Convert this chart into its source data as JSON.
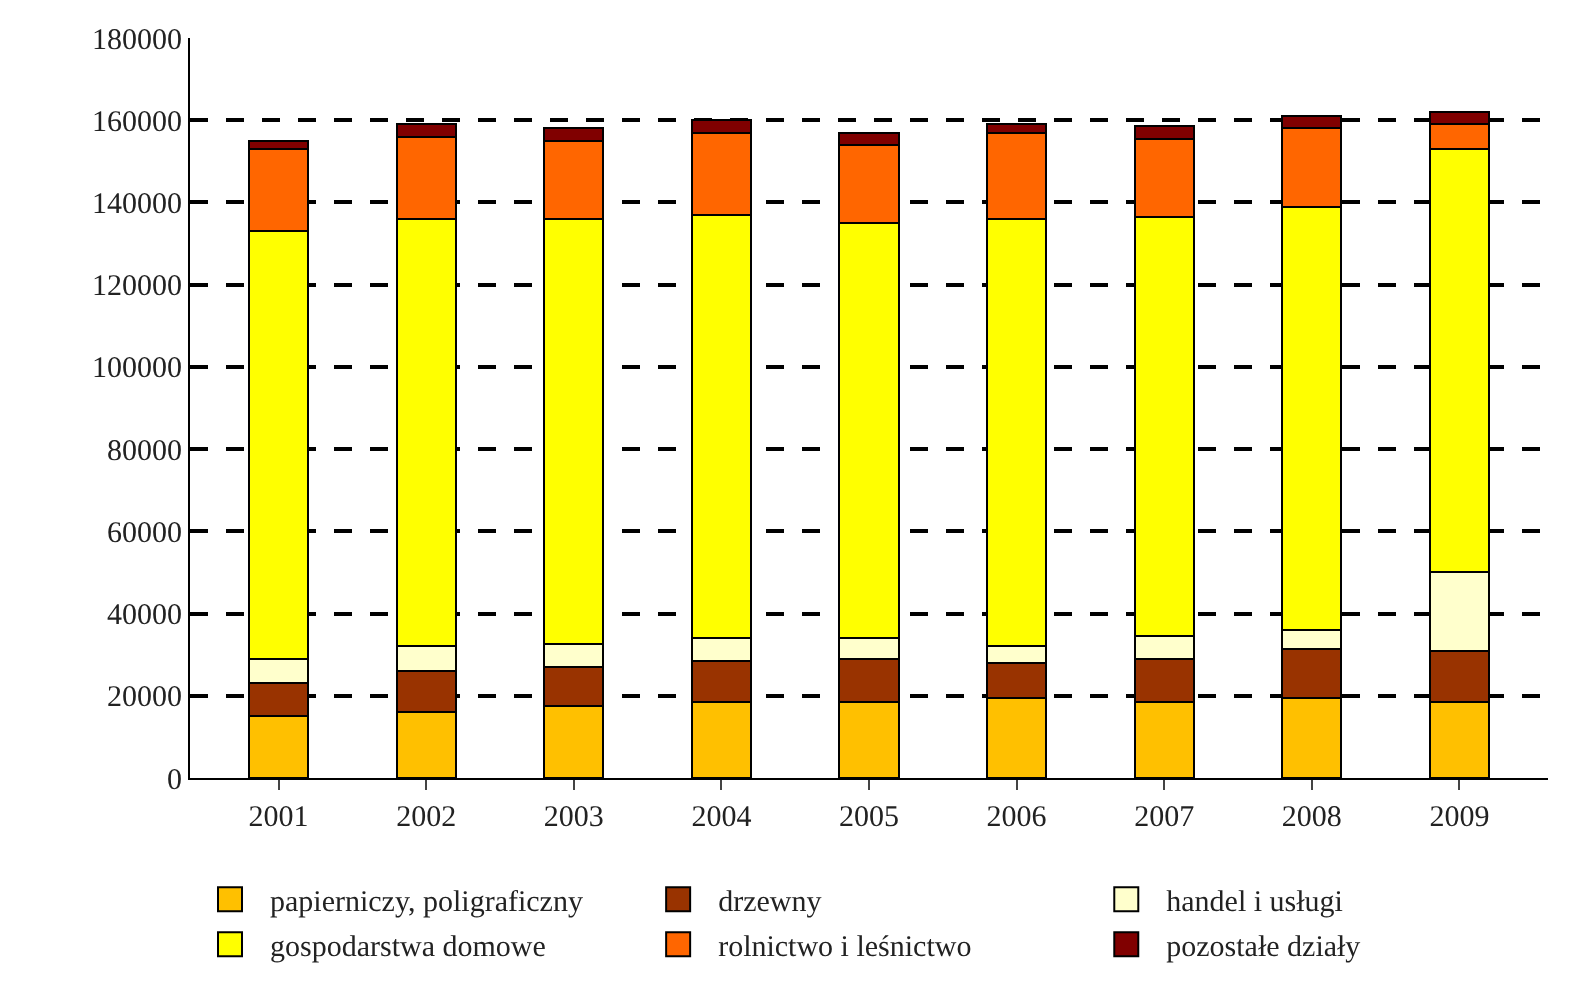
{
  "chart_data": {
    "type": "bar",
    "stacked": true,
    "categories": [
      "2001",
      "2002",
      "2003",
      "2004",
      "2005",
      "2006",
      "2007",
      "2008",
      "2009"
    ],
    "series": [
      {
        "name": "papierniczy, poligraficzny",
        "color": "#ffc000",
        "values": [
          15000,
          16000,
          17500,
          18500,
          18500,
          19500,
          18500,
          19500,
          18500
        ]
      },
      {
        "name": "drzewny",
        "color": "#993300",
        "values": [
          8000,
          10000,
          9500,
          10000,
          10500,
          8500,
          10500,
          12000,
          12500
        ]
      },
      {
        "name": "handel i usługi",
        "color": "#ffffcc",
        "values": [
          6000,
          6000,
          5500,
          5500,
          5000,
          4000,
          5500,
          4500,
          19000
        ]
      },
      {
        "name": "gospodarstwa domowe",
        "color": "#ffff00",
        "values": [
          104000,
          104000,
          103500,
          103000,
          101000,
          104000,
          102000,
          103000,
          103000
        ]
      },
      {
        "name": "rolnictwo i leśnictwo",
        "color": "#ff6600",
        "values": [
          20000,
          20000,
          19000,
          20000,
          19000,
          21000,
          19000,
          19000,
          6000
        ]
      },
      {
        "name": "pozostałe działy",
        "color": "#800000",
        "values": [
          2000,
          3000,
          3000,
          3000,
          3000,
          2000,
          3000,
          3000,
          3000
        ]
      }
    ],
    "ylim": [
      0,
      180000
    ],
    "yticks": [
      0,
      20000,
      40000,
      60000,
      80000,
      100000,
      120000,
      140000,
      160000,
      180000
    ],
    "grid": "y",
    "legend": "bottom"
  }
}
